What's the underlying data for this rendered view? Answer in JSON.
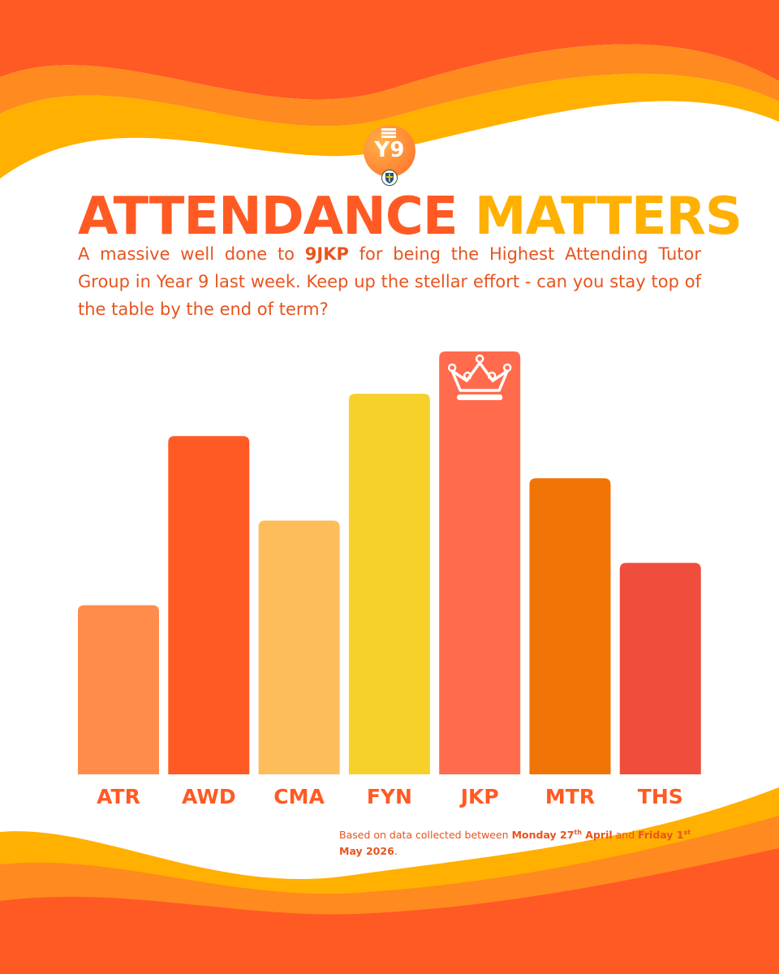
{
  "logo": {
    "text": "Y9"
  },
  "headline": {
    "part1": "ATTENDANCE",
    "part2": "MATTERS"
  },
  "intro": {
    "before": "A massive well done to ",
    "highlight": "9JKP",
    "after": " for being the Highest Attending Tutor Group in Year 9 last week. Keep up the stellar effort - can you stay top of the table by the end of term?"
  },
  "footnote": {
    "prefix": "Based on data collected between ",
    "start_day": "Monday 27",
    "start_sup": "th",
    "start_month": " April",
    "between": " and ",
    "end_day": "Friday 1",
    "end_sup": "st",
    "end_month": " May 2026",
    "suffix": "."
  },
  "colors": {
    "label": "#ff5a23",
    "wave_dark": "#ff5a23",
    "wave_mid": "#ff8a1f",
    "wave_light": "#ffb000"
  },
  "chart_data": {
    "type": "bar",
    "title": "",
    "xlabel": "",
    "ylabel": "",
    "categories": [
      "ATR",
      "AWD",
      "CMA",
      "FYN",
      "JKP",
      "MTR",
      "THS"
    ],
    "values": [
      20,
      40,
      30,
      45,
      50,
      35,
      25
    ],
    "bar_colors": [
      "#ff8c4b",
      "#ff5a23",
      "#fdbd5b",
      "#f6d12a",
      "#ff6b4c",
      "#f07405",
      "#ef4e3c"
    ],
    "highlight": {
      "category": "JKP",
      "icon": "crown-icon"
    },
    "ylim": [
      0,
      50
    ],
    "grid": false,
    "legend": "none"
  }
}
